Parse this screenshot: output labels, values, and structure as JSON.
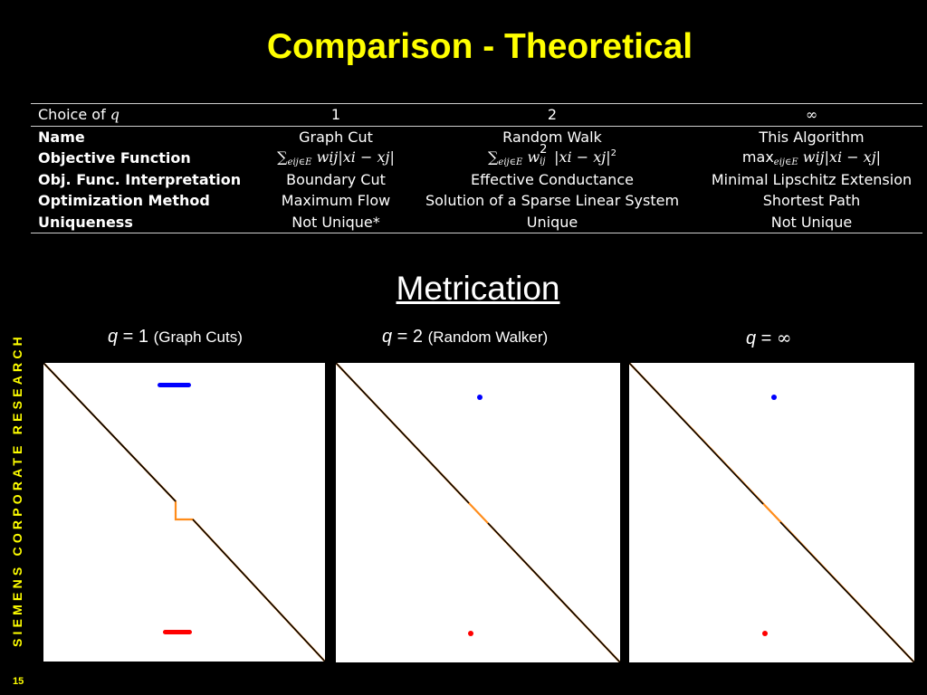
{
  "slide": {
    "title": "Comparison - Theoretical",
    "sidebar_text": "SIEMENS CORPORATE RESEARCH",
    "page_number": "15"
  },
  "table": {
    "header": {
      "label": "Choice of",
      "label_var": "q",
      "col1": "1",
      "col2": "2",
      "col3": "∞"
    },
    "rows": {
      "name": {
        "label": "Name",
        "c1": "Graph Cut",
        "c2": "Random Walk",
        "c3": "This Algorithm"
      },
      "objective": {
        "label": "Objective Function",
        "c1": {
          "sum": "∑",
          "sub": "eij∈E",
          "expr": "wij|xi − xj|"
        },
        "c2": {
          "sum": "∑",
          "sub": "eij∈E",
          "expr_w": "w",
          "w_sup": "2",
          "w_sub": "ij",
          "expr_rest": "|xi − xj|",
          "pow": "2"
        },
        "c3": {
          "max": "max",
          "sub": "eij∈E",
          "expr": "wij|xi − xj|"
        }
      },
      "interpretation": {
        "label": "Obj. Func. Interpretation",
        "c1": "Boundary Cut",
        "c2": "Effective Conductance",
        "c3": "Minimal Lipschitz Extension"
      },
      "optimization": {
        "label": "Optimization Method",
        "c1": "Maximum Flow",
        "c2": "Solution of a Sparse Linear System",
        "c3": "Shortest Path"
      },
      "uniqueness": {
        "label": "Uniqueness",
        "c1": "Not Unique*",
        "c2": "Unique",
        "c3": "Not Unique"
      }
    }
  },
  "metrication": {
    "heading": "Metrication",
    "panels": [
      {
        "q_var": "q",
        "eq": " = ",
        "q_val": "1",
        "desc": "(Graph Cuts)",
        "seed_shape": "bar"
      },
      {
        "q_var": "q",
        "eq": " = ",
        "q_val": "2",
        "desc": "(Random Walker)",
        "seed_shape": "dot"
      },
      {
        "q_var": "q",
        "eq": " = ",
        "q_val": "∞",
        "desc": "",
        "seed_shape": "dot"
      }
    ],
    "colors": {
      "top_seed": "#0000ff",
      "bottom_seed": "#ff0000",
      "boundary_dark": "#000000",
      "boundary_light": "#ff8c1a",
      "panel_bg": "#ffffff"
    }
  }
}
